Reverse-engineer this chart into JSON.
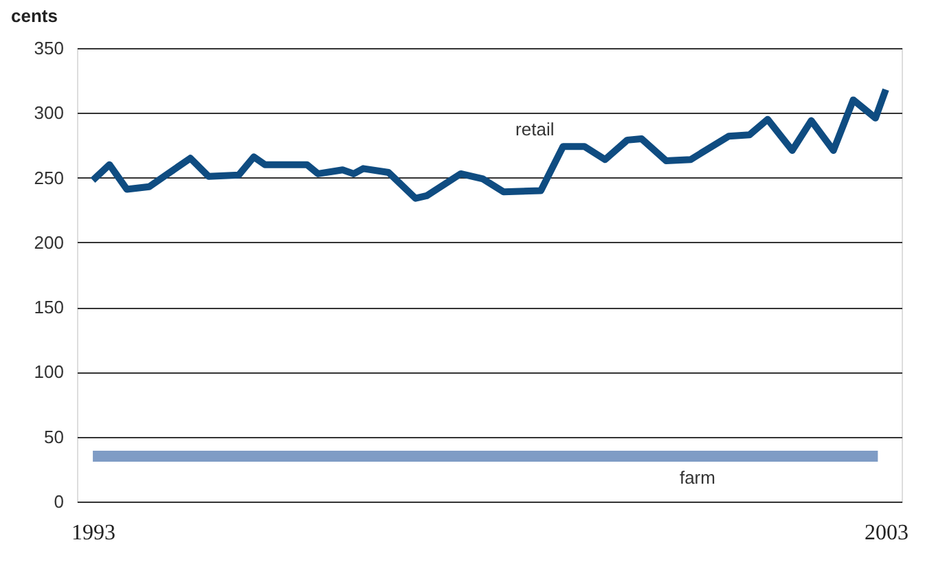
{
  "chart_data": {
    "type": "line",
    "ylabel": "cents",
    "xlim": [
      1992.8,
      2003.2
    ],
    "xticks": [
      1993,
      2003
    ],
    "ylim": [
      0,
      350
    ],
    "yticks": [
      0,
      50,
      100,
      150,
      200,
      250,
      300,
      350
    ],
    "grid": "y",
    "legend": false,
    "line_style": "solid",
    "marker": "none",
    "series": [
      {
        "name": "retail",
        "color": "#0f4c81",
        "x": [
          1993.0,
          1993.21,
          1993.43,
          1993.71,
          1994.23,
          1994.46,
          1994.84,
          1995.03,
          1995.17,
          1995.7,
          1995.84,
          1996.15,
          1996.29,
          1996.41,
          1996.73,
          1997.07,
          1997.21,
          1997.64,
          1997.92,
          1998.18,
          1998.65,
          1998.93,
          1999.2,
          1999.46,
          1999.74,
          1999.92,
          2000.23,
          2000.54,
          2001.02,
          2001.28,
          2001.51,
          2001.82,
          2002.06,
          2002.34,
          2002.59,
          2002.87,
          2003.0
        ],
        "values": [
          248,
          260,
          241,
          243,
          265,
          251,
          252,
          266,
          260,
          260,
          253,
          256,
          253,
          257,
          254,
          234,
          236,
          253,
          249,
          239,
          240,
          274,
          274,
          264,
          279,
          280,
          263,
          264,
          282,
          283,
          295,
          271,
          294,
          271,
          310,
          296,
          318
        ]
      },
      {
        "name": "farm",
        "color": "#7f9cc5",
        "x": [
          1993.0,
          2002.9
        ],
        "values": [
          35,
          35
        ]
      }
    ]
  }
}
